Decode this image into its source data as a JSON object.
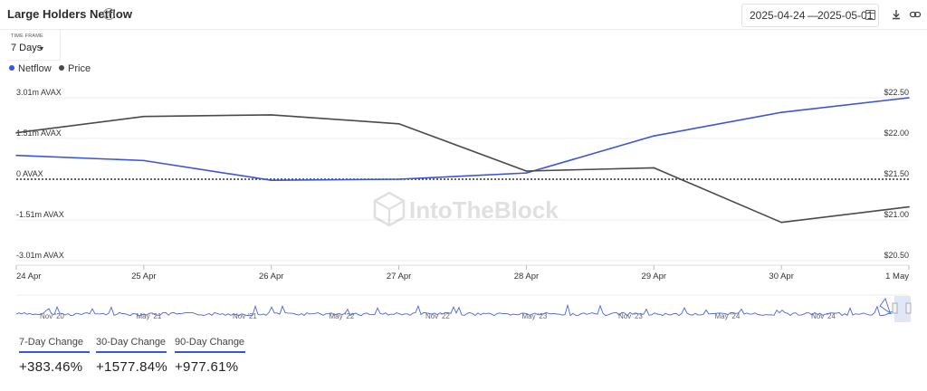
{
  "header": {
    "title": "Large Holders Netflow",
    "date_from": "2025-04-24",
    "date_sep": "—",
    "date_to": "2025-05-01"
  },
  "timeframe": {
    "label": "TIME FRAME",
    "value": "7 Days"
  },
  "legend": [
    {
      "name": "Netflow",
      "color": "#3b55d9"
    },
    {
      "name": "Price",
      "color": "#4a4a4a"
    }
  ],
  "watermark": "IntoTheBlock",
  "chart_data": {
    "type": "line",
    "title": "Large Holders Netflow",
    "x": [
      "24 Apr",
      "25 Apr",
      "26 Apr",
      "27 Apr",
      "28 Apr",
      "29 Apr",
      "30 Apr",
      "1 May"
    ],
    "y_left": {
      "ticks": [
        "3.01m AVAX",
        "1.51m AVAX",
        "0 AVAX",
        "-1.51m AVAX",
        "-3.01m AVAX"
      ],
      "range": [
        -3.01,
        3.01
      ],
      "unit": "m AVAX"
    },
    "y_right": {
      "ticks": [
        "$22.50",
        "$22.00",
        "$21.50",
        "$21.00",
        "$20.50"
      ],
      "range": [
        20.5,
        22.5
      ]
    },
    "series": [
      {
        "name": "Netflow",
        "axis": "left",
        "color": "#3b55d9",
        "values": [
          0.88,
          0.69,
          -0.04,
          0.0,
          0.23,
          1.6,
          2.47,
          3.01
        ]
      },
      {
        "name": "Price",
        "axis": "right",
        "color": "#4a4a4a",
        "values": [
          22.07,
          22.27,
          22.29,
          22.18,
          21.6,
          21.64,
          20.97,
          21.16
        ]
      }
    ],
    "grid": true,
    "zero_line": "dotted",
    "legend_position": "top-left"
  },
  "navigator": {
    "labels": [
      "Nov '20",
      "May '21",
      "Nov '21",
      "May '22",
      "Nov '22",
      "May '23",
      "Nov '23",
      "May '24",
      "Nov '24"
    ]
  },
  "stats": [
    {
      "label": "7-Day Change",
      "value": "+383.46%"
    },
    {
      "label": "30-Day Change",
      "value": "+1577.84%"
    },
    {
      "label": "90-Day Change",
      "value": "+977.61%"
    }
  ]
}
